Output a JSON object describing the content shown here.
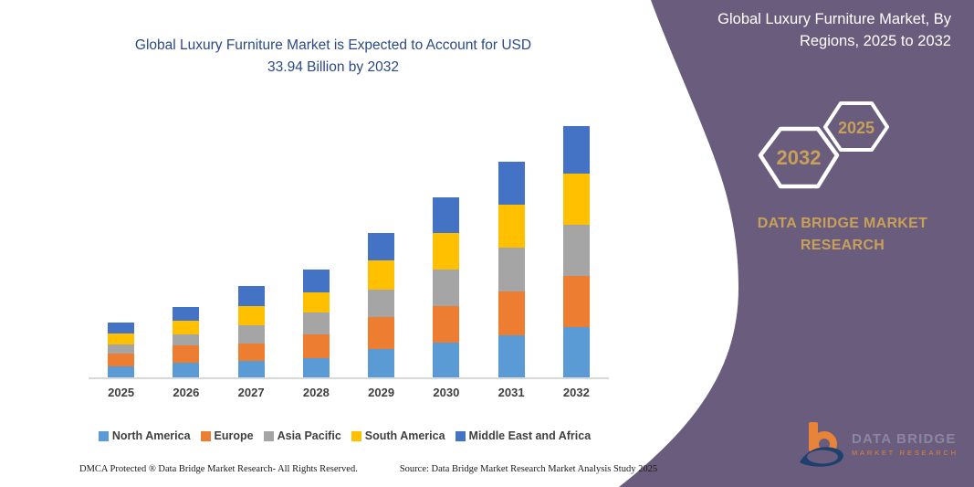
{
  "chart": {
    "title_line1": "Global Luxury Furniture Market is Expected to Account for USD",
    "title_line2": "33.94 Billion by 2032"
  },
  "chart_data": {
    "type": "bar",
    "stacked": true,
    "title": "Global Luxury Furniture Market is Expected to Account for USD 33.94 Billion by 2032",
    "unit": "USD Billion",
    "categories": [
      "2025",
      "2026",
      "2027",
      "2028",
      "2029",
      "2030",
      "2031",
      "2032"
    ],
    "series": [
      {
        "name": "North America",
        "color": "#5B9BD5",
        "values": [
          1.5,
          2.0,
          2.2,
          2.6,
          3.8,
          4.7,
          5.7,
          6.8
        ]
      },
      {
        "name": "Europe",
        "color": "#ED7D31",
        "values": [
          1.7,
          2.3,
          2.3,
          3.2,
          4.3,
          4.9,
          5.9,
          6.9
        ]
      },
      {
        "name": "Asia Pacific",
        "color": "#A5A5A5",
        "values": [
          1.2,
          1.5,
          2.5,
          3.0,
          3.7,
          4.9,
          5.9,
          6.9
        ]
      },
      {
        "name": "South America",
        "color": "#FFC000",
        "values": [
          1.5,
          1.8,
          2.6,
          2.7,
          3.9,
          4.9,
          5.8,
          6.9
        ]
      },
      {
        "name": "Middle East and Africa",
        "color": "#4472C4",
        "values": [
          1.5,
          1.9,
          2.7,
          3.1,
          3.7,
          4.8,
          5.8,
          6.44
        ]
      }
    ],
    "totals": [
      7.4,
      9.5,
      12.3,
      14.6,
      19.4,
      24.2,
      29.1,
      33.94
    ],
    "ylim": [
      0,
      35
    ],
    "grid": false,
    "y_axis_visible": false,
    "legend_position": "bottom"
  },
  "right_panel": {
    "title_line1": "Global Luxury Furniture Market, By",
    "title_line2": "Regions, 2025 to 2032",
    "hexagon_front_year": "2032",
    "hexagon_back_year": "2025",
    "brand_line1": "DATA BRIDGE MARKET",
    "brand_line2": "RESEARCH",
    "panel_color": "#695C7C",
    "accent_gold": "#C8A05A"
  },
  "logo": {
    "line1": "DATA BRIDGE",
    "line2": "MARKET RESEARCH"
  },
  "footer": {
    "left": "DMCA Protected ® Data Bridge Market Research-  All Rights Reserved.",
    "right": "Source: Data Bridge Market Research  Market Analysis Study 2025"
  }
}
